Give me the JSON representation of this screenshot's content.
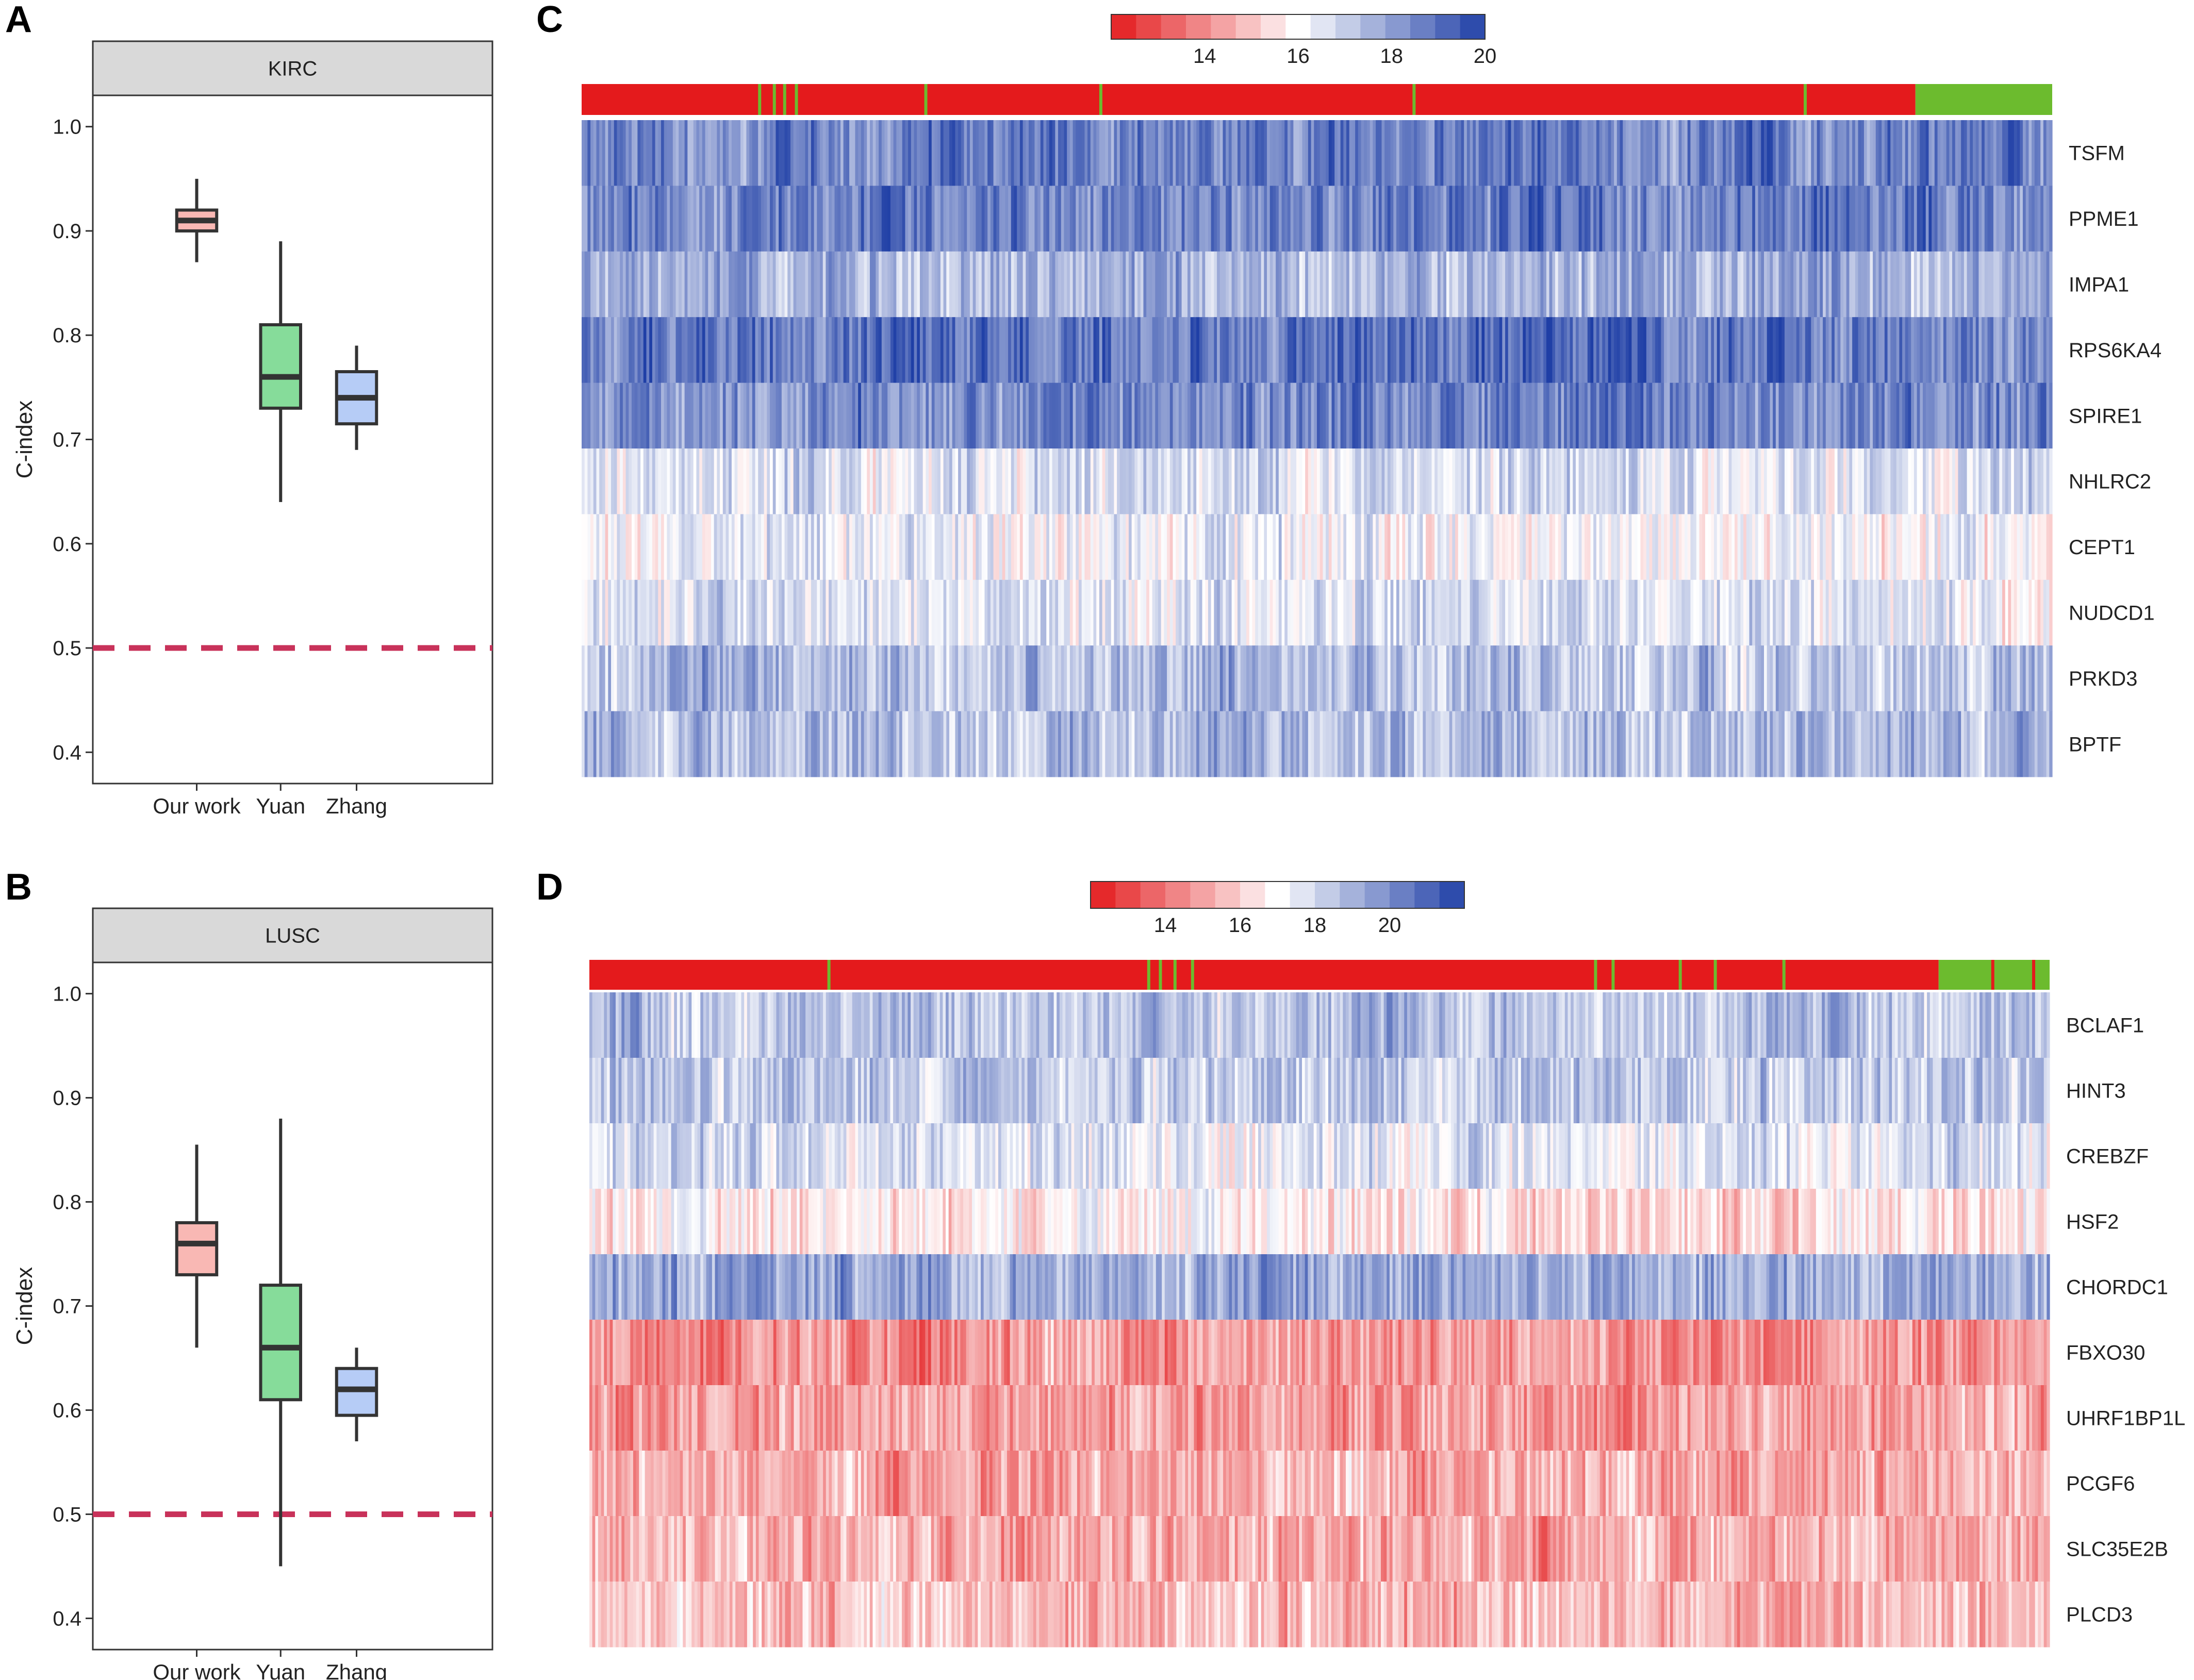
{
  "colors": {
    "red": "#e31a1c",
    "white": "#ffffff",
    "blue": "#1f3fa6",
    "group_red": "#e41a1c",
    "group_green": "#6cbb2e",
    "ref_line": "#c8325a",
    "box_our": "#f9b8b4",
    "box_yuan": "#86dc9a",
    "box_zhang": "#b6ccf6"
  },
  "chart_data": [
    {
      "panel": "A",
      "type": "box",
      "strip_label": "KIRC",
      "ylabel": "C-index",
      "ylim": [
        0.37,
        1.03
      ],
      "yticks": [
        "0.4",
        "0.5",
        "0.6",
        "0.7",
        "0.8",
        "0.9",
        "1.0"
      ],
      "reference_line": 0.5,
      "categories": [
        "Our work",
        "Yuan",
        "Zhang"
      ],
      "boxes": [
        {
          "name": "Our work",
          "min": 0.87,
          "q1": 0.9,
          "median": 0.91,
          "q3": 0.92,
          "max": 0.95
        },
        {
          "name": "Yuan",
          "min": 0.64,
          "q1": 0.73,
          "median": 0.76,
          "q3": 0.81,
          "max": 0.89
        },
        {
          "name": "Zhang",
          "min": 0.69,
          "q1": 0.715,
          "median": 0.74,
          "q3": 0.765,
          "max": 0.79
        }
      ]
    },
    {
      "panel": "B",
      "type": "box",
      "strip_label": "LUSC",
      "ylabel": "C-index",
      "ylim": [
        0.37,
        1.03
      ],
      "yticks": [
        "0.4",
        "0.5",
        "0.6",
        "0.7",
        "0.8",
        "0.9",
        "1.0"
      ],
      "reference_line": 0.5,
      "categories": [
        "Our work",
        "Yuan",
        "Zhang"
      ],
      "boxes": [
        {
          "name": "Our work",
          "min": 0.66,
          "q1": 0.73,
          "median": 0.76,
          "q3": 0.78,
          "max": 0.855
        },
        {
          "name": "Yuan",
          "min": 0.45,
          "q1": 0.61,
          "median": 0.66,
          "q3": 0.72,
          "max": 0.88
        },
        {
          "name": "Zhang",
          "min": 0.57,
          "q1": 0.595,
          "median": 0.62,
          "q3": 0.64,
          "max": 0.66
        }
      ]
    },
    {
      "panel": "C",
      "type": "heatmap",
      "legend": {
        "min": 12,
        "max": 20,
        "tick_labels": [
          "14",
          "16",
          "18",
          "20"
        ],
        "tick_values": [
          14,
          16,
          18,
          20
        ]
      },
      "rows": [
        "TSFM",
        "PPME1",
        "IMPA1",
        "RPS6KA4",
        "SPIRE1",
        "NHLRC2",
        "CEPT1",
        "NUDCD1",
        "PRKD3",
        "BPTF"
      ],
      "row_means": [
        18.6,
        18.7,
        17.6,
        18.9,
        18.5,
        16.6,
        16.2,
        16.5,
        17.3,
        17.4
      ],
      "n_samples": 500,
      "group_bar": {
        "group_1_fraction": 0.907,
        "group_2_fraction": 0.093,
        "group_2_positions_in_group_1": [
          0.12,
          0.13,
          0.137,
          0.145,
          0.233,
          0.352,
          0.565,
          0.831
        ]
      }
    },
    {
      "panel": "D",
      "type": "heatmap",
      "legend": {
        "min": 12,
        "max": 22,
        "tick_labels": [
          "14",
          "16",
          "18",
          "20"
        ],
        "tick_values": [
          14,
          16,
          18,
          20
        ]
      },
      "rows": [
        "BCLAF1",
        "HINT3",
        "CREBZF",
        "HSF2",
        "CHORDC1",
        "FBXO30",
        "UHRF1BP1L",
        "PCGF6",
        "SLC35E2B",
        "PLCD3"
      ],
      "row_means": [
        18.6,
        18.4,
        17.7,
        16.5,
        19.2,
        14.7,
        14.8,
        15.2,
        15.3,
        15.6
      ],
      "n_samples": 500,
      "group_bar": {
        "group_1_fraction": 0.924,
        "group_2_fraction": 0.076,
        "group_2_positions_in_group_1": [
          0.163,
          0.382,
          0.39,
          0.4,
          0.412,
          0.688,
          0.7,
          0.746,
          0.77,
          0.817
        ],
        "group_1_positions_in_group_2": [
          0.96,
          0.988
        ]
      }
    }
  ],
  "labels": {
    "panel_a": "A",
    "panel_b": "B",
    "panel_c": "C",
    "panel_d": "D"
  }
}
